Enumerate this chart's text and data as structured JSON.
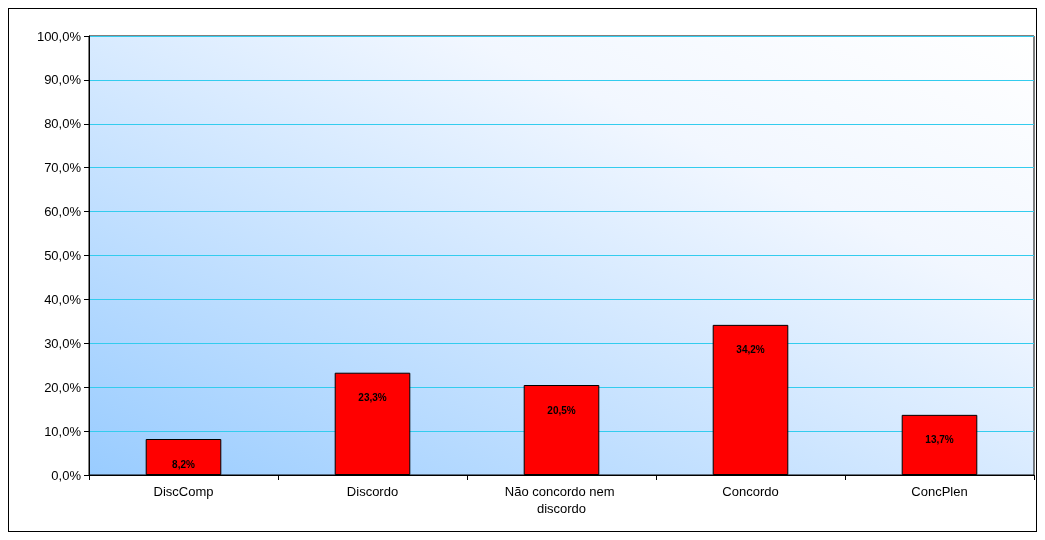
{
  "chart_data": {
    "type": "bar",
    "categories": [
      "DiscComp",
      "Discordo",
      "Não concordo nem discordo",
      "Concordo",
      "ConcPlen"
    ],
    "values": [
      8.2,
      23.3,
      20.5,
      34.2,
      13.7
    ],
    "value_labels": [
      "8,2%",
      "23,3%",
      "20,5%",
      "34,2%",
      "13,7%"
    ],
    "color": "#ff0000",
    "ylim": [
      0,
      100
    ],
    "yticks": [
      {
        "value": 0,
        "label": "0,0%"
      },
      {
        "value": 10,
        "label": "10,0%"
      },
      {
        "value": 20,
        "label": "20,0%"
      },
      {
        "value": 30,
        "label": "30,0%"
      },
      {
        "value": 40,
        "label": "40,0%"
      },
      {
        "value": 50,
        "label": "50,0%"
      },
      {
        "value": 60,
        "label": "60,0%"
      },
      {
        "value": 70,
        "label": "70,0%"
      },
      {
        "value": 80,
        "label": "80,0%"
      },
      {
        "value": 90,
        "label": "90,0%"
      },
      {
        "value": 100,
        "label": "100,0%"
      }
    ],
    "grid": "y"
  }
}
